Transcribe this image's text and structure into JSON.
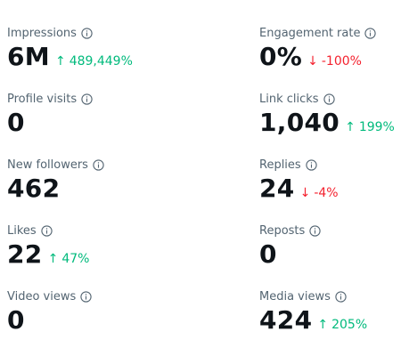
{
  "colors": {
    "label": "#536471",
    "value": "#0f1419",
    "up": "#00ba7c",
    "down": "#f4212e"
  },
  "metrics": [
    {
      "label": "Impressions",
      "value": "6M",
      "change": "489,449%",
      "direction": "up",
      "icon": "info-icon"
    },
    {
      "label": "Engagement rate",
      "value": "0%",
      "change": "-100%",
      "direction": "down",
      "icon": "info-icon"
    },
    {
      "label": "Profile visits",
      "value": "0",
      "change": "",
      "direction": "",
      "icon": "info-icon"
    },
    {
      "label": "Link clicks",
      "value": "1,040",
      "change": "199%",
      "direction": "up",
      "icon": "info-icon"
    },
    {
      "label": "New followers",
      "value": "462",
      "change": "",
      "direction": "",
      "icon": "info-icon"
    },
    {
      "label": "Replies",
      "value": "24",
      "change": "-4%",
      "direction": "down",
      "icon": "info-icon"
    },
    {
      "label": "Likes",
      "value": "22",
      "change": "47%",
      "direction": "up",
      "icon": "info-icon"
    },
    {
      "label": "Reposts",
      "value": "0",
      "change": "",
      "direction": "",
      "icon": "info-icon"
    },
    {
      "label": "Video views",
      "value": "0",
      "change": "",
      "direction": "",
      "icon": "info-icon"
    },
    {
      "label": "Media views",
      "value": "424",
      "change": "205%",
      "direction": "up",
      "icon": "info-icon"
    }
  ]
}
